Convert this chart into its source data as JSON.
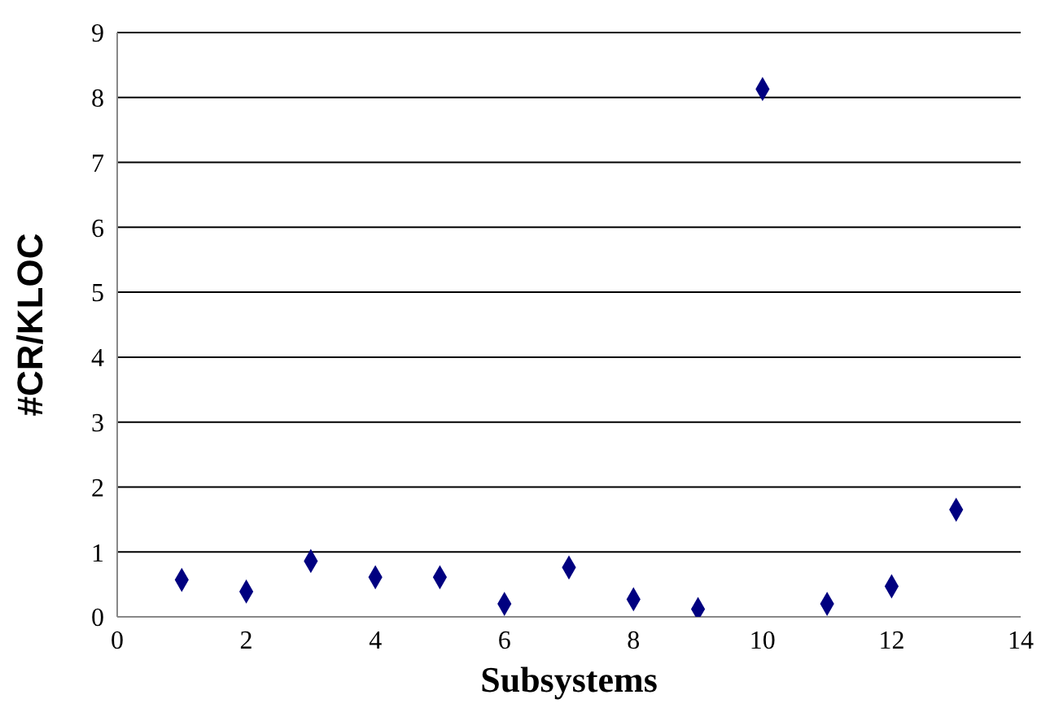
{
  "chart_data": {
    "type": "scatter",
    "xlabel": "Subsystems",
    "ylabel": "#CR/KLOC",
    "x": [
      1,
      2,
      3,
      4,
      5,
      6,
      7,
      8,
      9,
      10,
      11,
      12,
      13
    ],
    "values": [
      0.57,
      0.39,
      0.86,
      0.61,
      0.61,
      0.2,
      0.76,
      0.27,
      0.12,
      8.13,
      0.2,
      0.47,
      1.65
    ],
    "color": "#000080",
    "marker": "diamond",
    "xlim": [
      0,
      14
    ],
    "xticks": [
      0,
      2,
      4,
      6,
      8,
      10,
      12,
      14
    ],
    "ylim": [
      0,
      9
    ],
    "yticks": [
      0,
      1,
      2,
      3,
      4,
      5,
      6,
      7,
      8,
      9
    ],
    "grid": "y",
    "legend": false
  }
}
